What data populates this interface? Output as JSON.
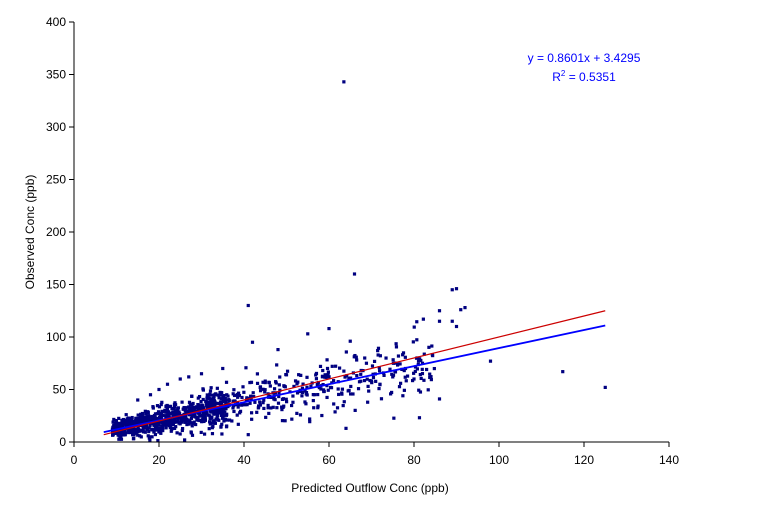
{
  "chart_data": {
    "type": "scatter",
    "title": "",
    "xlabel": "Predicted Outflow Conc (ppb)",
    "ylabel": "Observed Conc (ppb)",
    "xlim": [
      0,
      140
    ],
    "ylim": [
      0,
      400
    ],
    "x_ticks": [
      "0",
      "20",
      "40",
      "60",
      "80",
      "100",
      "120",
      "140"
    ],
    "y_ticks": [
      "0",
      "50",
      "100",
      "150",
      "200",
      "250",
      "300",
      "350",
      "400"
    ],
    "grid": false,
    "legend": "none",
    "colors": {
      "points": "#000080",
      "trend_line": "#0000ff",
      "one_to_one_line": "#cc0000",
      "annotation": "#0000ff",
      "axis": "#000000"
    },
    "series": [
      {
        "kind": "points",
        "points": [
          [
            63.5,
            343
          ],
          [
            66,
            160
          ],
          [
            41,
            130
          ],
          [
            89,
            145
          ],
          [
            90,
            146
          ],
          [
            92,
            128
          ],
          [
            91,
            126
          ],
          [
            89,
            115
          ],
          [
            90,
            110
          ],
          [
            86,
            125
          ],
          [
            86,
            115
          ],
          [
            60,
            108
          ],
          [
            55,
            103
          ],
          [
            65,
            96
          ],
          [
            48,
            88
          ],
          [
            42,
            95
          ],
          [
            98,
            77
          ],
          [
            115,
            67
          ],
          [
            125,
            52
          ],
          [
            86,
            41
          ],
          [
            64,
            13
          ],
          [
            41,
            7
          ],
          [
            75,
            62
          ],
          [
            70,
            58
          ],
          [
            78,
            70
          ],
          [
            82,
            75
          ],
          [
            68,
            68
          ],
          [
            72,
            55
          ],
          [
            80,
            60
          ],
          [
            58,
            72
          ],
          [
            50,
            64
          ],
          [
            45,
            58
          ],
          [
            35,
            70
          ],
          [
            30,
            65
          ],
          [
            27,
            62
          ],
          [
            25,
            60
          ],
          [
            22,
            55
          ],
          [
            20,
            50
          ],
          [
            18,
            45
          ],
          [
            15,
            40
          ]
        ],
        "cluster": {
          "note": "dense cluster of ~1000 points, x 7–85, following y ≈ 0.86x + 3.4 with scatter",
          "count": 1100,
          "x_range": [
            7,
            85
          ],
          "slope": 0.8601,
          "intercept": 3.4295
        }
      },
      {
        "kind": "line",
        "name": "",
        "role": "fitted trend",
        "color": "#0000ff",
        "slope": 0.8601,
        "intercept": 3.4295,
        "x_range": [
          7,
          125
        ]
      },
      {
        "kind": "line",
        "name": "",
        "role": "1:1 line",
        "color": "#cc0000",
        "slope": 1,
        "intercept": 0,
        "x_range": [
          7,
          125
        ]
      }
    ],
    "annotation": {
      "equation": "y = 0.8601x + 3.4295",
      "r2_prefix": "R",
      "r2_sup": "2",
      "r2_value": " = 0.5351"
    }
  }
}
